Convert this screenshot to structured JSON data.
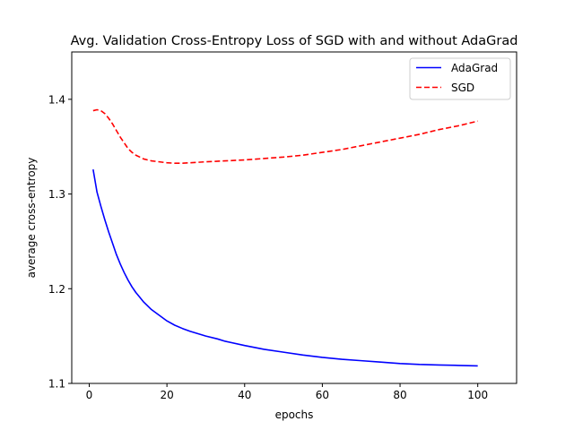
{
  "chart_data": {
    "type": "line",
    "title": "Avg. Validation Cross-Entropy Loss of SGD with and without AdaGrad",
    "xlabel": "epochs",
    "ylabel": "average cross-entropy",
    "xlim": [
      -4.5,
      110
    ],
    "ylim": [
      1.1,
      1.45
    ],
    "xticks": [
      0,
      20,
      40,
      60,
      80,
      100
    ],
    "yticks": [
      1.1,
      1.2,
      1.3,
      1.4
    ],
    "xtick_labels": [
      "0",
      "20",
      "40",
      "60",
      "80",
      "100"
    ],
    "ytick_labels": [
      "1.1",
      "1.2",
      "1.3",
      "1.4"
    ],
    "grid": false,
    "legend_position": "upper right",
    "series": [
      {
        "name": "AdaGrad",
        "color": "#0000ff",
        "style": "solid",
        "x": [
          1,
          2,
          3,
          4,
          5,
          6,
          7,
          8,
          9,
          10,
          11,
          12,
          13,
          14,
          15,
          16,
          18,
          20,
          22,
          24,
          26,
          28,
          30,
          33,
          35,
          40,
          45,
          50,
          55,
          60,
          65,
          70,
          75,
          80,
          85,
          90,
          95,
          100
        ],
        "y": [
          1.326,
          1.302,
          1.287,
          1.273,
          1.26,
          1.248,
          1.236,
          1.226,
          1.217,
          1.209,
          1.202,
          1.196,
          1.191,
          1.186,
          1.182,
          1.178,
          1.172,
          1.166,
          1.1615,
          1.158,
          1.155,
          1.1525,
          1.15,
          1.147,
          1.1445,
          1.14,
          1.136,
          1.133,
          1.13,
          1.1275,
          1.1255,
          1.124,
          1.1225,
          1.121,
          1.12,
          1.1195,
          1.119,
          1.1185
        ]
      },
      {
        "name": "SGD",
        "color": "#ff0000",
        "style": "dashed",
        "x": [
          1,
          2,
          3,
          4,
          5,
          6,
          7,
          8,
          9,
          10,
          11,
          12,
          13,
          14,
          15,
          16,
          18,
          20,
          22,
          24,
          26,
          30,
          35,
          40,
          45,
          50,
          55,
          60,
          65,
          70,
          75,
          80,
          85,
          90,
          95,
          100
        ],
        "y": [
          1.388,
          1.389,
          1.388,
          1.385,
          1.38,
          1.374,
          1.367,
          1.36,
          1.354,
          1.348,
          1.344,
          1.341,
          1.339,
          1.337,
          1.336,
          1.335,
          1.334,
          1.333,
          1.3325,
          1.3325,
          1.333,
          1.334,
          1.335,
          1.336,
          1.3375,
          1.339,
          1.341,
          1.344,
          1.347,
          1.351,
          1.355,
          1.359,
          1.363,
          1.368,
          1.372,
          1.377
        ]
      }
    ]
  }
}
